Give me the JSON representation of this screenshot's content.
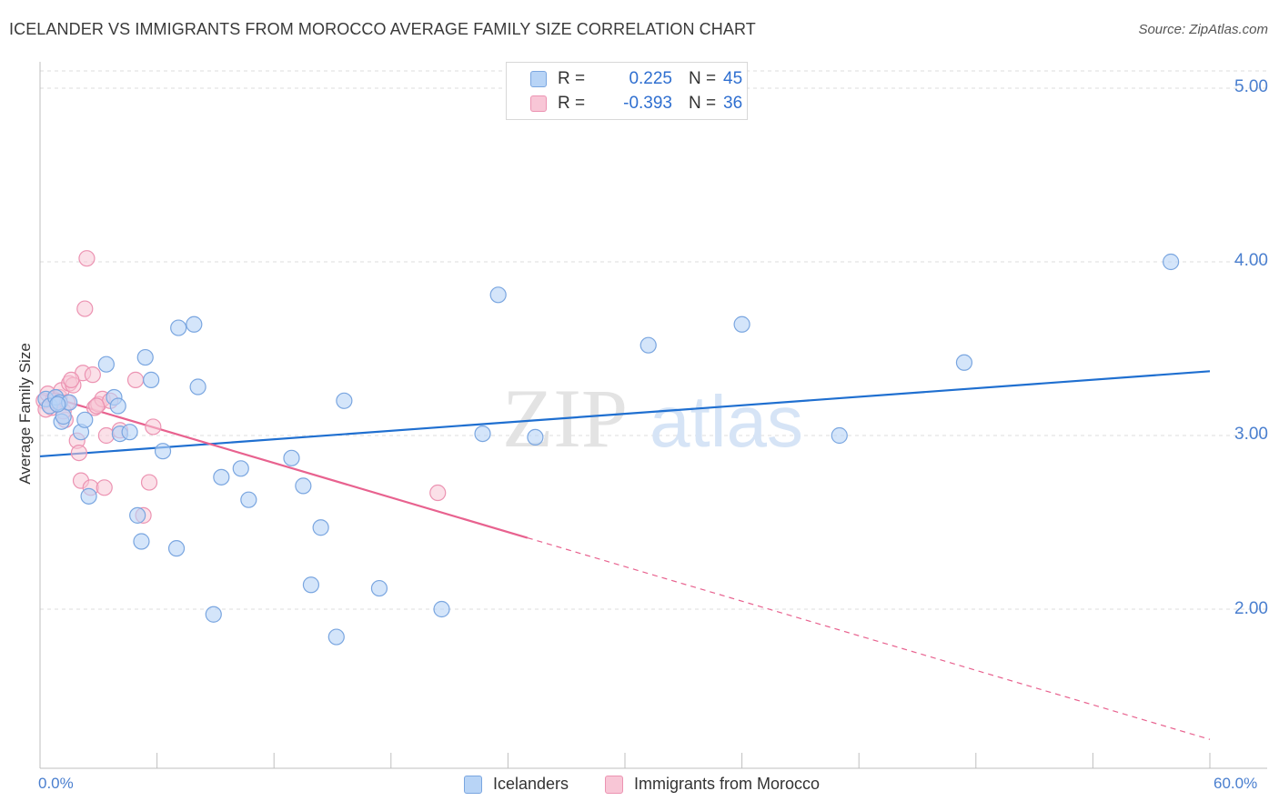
{
  "title": "ICELANDER VS IMMIGRANTS FROM MOROCCO AVERAGE FAMILY SIZE CORRELATION CHART",
  "source": "Source: ZipAtlas.com",
  "watermark": {
    "zip": "ZIP",
    "atlas": "atlas"
  },
  "legend": {
    "rows": [
      {
        "r_label": "R =",
        "r_value": "0.225",
        "n_label": "N =",
        "n_value": "45"
      },
      {
        "r_label": "R =",
        "r_value": "-0.393",
        "n_label": "N =",
        "n_value": "36"
      }
    ]
  },
  "bottom_legend": [
    "Icelanders",
    "Immigrants from Morocco"
  ],
  "colors": {
    "blue": "#1f6fd0",
    "blue_fill": "#b8d4f6",
    "blue_stroke": "#7aa6e0",
    "pink": "#e8628f",
    "pink_fill": "#f8c6d6",
    "pink_stroke": "#ec93b2",
    "tick_text": "#4a7fcf",
    "grid": "#dcdcdc"
  },
  "chart_data": {
    "type": "scatter",
    "title": "ICELANDER VS IMMIGRANTS FROM MOROCCO AVERAGE FAMILY SIZE CORRELATION CHART",
    "xlabel": "",
    "ylabel": "Average Family Size",
    "xlim": [
      0,
      60
    ],
    "ylim": [
      1.2,
      5.1
    ],
    "x_tick_labels": [
      "0.0%",
      "60.0%"
    ],
    "y_ticks": [
      2.0,
      3.0,
      4.0,
      5.0
    ],
    "y_tick_labels": [
      "2.00",
      "3.00",
      "4.00",
      "5.00"
    ],
    "grid": true,
    "series": [
      {
        "name": "Icelanders",
        "points": [
          [
            0.3,
            3.21
          ],
          [
            0.5,
            3.17
          ],
          [
            0.8,
            3.22
          ],
          [
            1.0,
            3.19
          ],
          [
            1.1,
            3.08
          ],
          [
            1.2,
            3.11
          ],
          [
            1.5,
            3.19
          ],
          [
            2.1,
            3.02
          ],
          [
            2.3,
            3.09
          ],
          [
            2.5,
            2.65
          ],
          [
            3.4,
            3.41
          ],
          [
            3.8,
            3.22
          ],
          [
            4.0,
            3.17
          ],
          [
            4.1,
            3.01
          ],
          [
            4.6,
            3.02
          ],
          [
            5.0,
            2.54
          ],
          [
            5.2,
            2.39
          ],
          [
            5.4,
            3.45
          ],
          [
            5.7,
            3.32
          ],
          [
            6.3,
            2.91
          ],
          [
            7.0,
            2.35
          ],
          [
            7.1,
            3.62
          ],
          [
            7.9,
            3.64
          ],
          [
            8.1,
            3.28
          ],
          [
            8.9,
            1.97
          ],
          [
            9.3,
            2.76
          ],
          [
            10.3,
            2.81
          ],
          [
            10.7,
            2.63
          ],
          [
            12.9,
            2.87
          ],
          [
            13.5,
            2.71
          ],
          [
            13.9,
            2.14
          ],
          [
            14.4,
            2.47
          ],
          [
            15.2,
            1.84
          ],
          [
            15.6,
            3.2
          ],
          [
            17.4,
            2.12
          ],
          [
            20.6,
            2.0
          ],
          [
            22.7,
            3.01
          ],
          [
            23.5,
            3.81
          ],
          [
            25.4,
            2.99
          ],
          [
            31.2,
            3.52
          ],
          [
            36.0,
            3.64
          ],
          [
            41.0,
            3.0
          ],
          [
            47.4,
            3.42
          ],
          [
            58.0,
            4.0
          ],
          [
            0.9,
            3.18
          ]
        ],
        "trend": {
          "x": [
            0,
            60
          ],
          "y": [
            2.88,
            3.37
          ]
        }
      },
      {
        "name": "Immigrants from Morocco",
        "points": [
          [
            0.2,
            3.2
          ],
          [
            0.4,
            3.24
          ],
          [
            0.6,
            3.16
          ],
          [
            0.7,
            3.21
          ],
          [
            0.9,
            3.18
          ],
          [
            1.0,
            3.22
          ],
          [
            1.1,
            3.26
          ],
          [
            1.3,
            3.09
          ],
          [
            1.5,
            3.3
          ],
          [
            1.7,
            3.29
          ],
          [
            1.9,
            2.97
          ],
          [
            2.0,
            2.9
          ],
          [
            2.1,
            2.74
          ],
          [
            2.2,
            3.36
          ],
          [
            2.3,
            3.73
          ],
          [
            2.4,
            4.02
          ],
          [
            2.6,
            2.7
          ],
          [
            2.7,
            3.35
          ],
          [
            2.8,
            3.16
          ],
          [
            3.0,
            3.18
          ],
          [
            3.2,
            3.21
          ],
          [
            3.3,
            2.7
          ],
          [
            3.4,
            3.0
          ],
          [
            3.6,
            3.2
          ],
          [
            4.1,
            3.03
          ],
          [
            4.9,
            3.32
          ],
          [
            5.3,
            2.54
          ],
          [
            5.6,
            2.73
          ],
          [
            5.8,
            3.05
          ],
          [
            20.4,
            2.67
          ],
          [
            0.3,
            3.15
          ],
          [
            0.8,
            3.2
          ],
          [
            1.2,
            3.14
          ],
          [
            1.6,
            3.32
          ],
          [
            2.9,
            3.17
          ],
          [
            1.4,
            3.19
          ]
        ],
        "trend": {
          "x": [
            0,
            60
          ],
          "y": [
            3.24,
            1.25
          ],
          "solid_until_x": 25
        }
      }
    ]
  }
}
